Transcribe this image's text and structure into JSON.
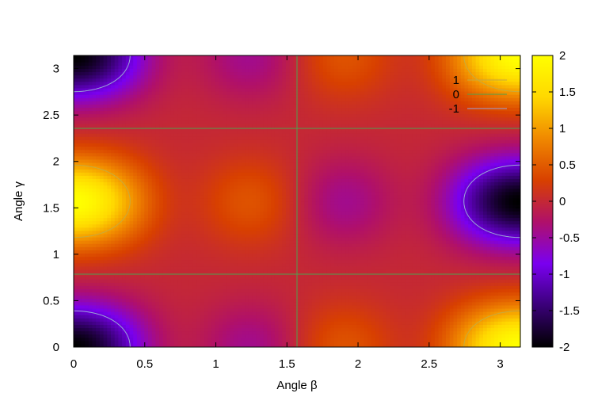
{
  "chart_data": {
    "type": "heatmap",
    "title": "",
    "xlabel": "Angle β",
    "ylabel": "Angle γ",
    "xlim": [
      0,
      3.1416
    ],
    "ylim": [
      0,
      3.1416
    ],
    "x_ticks": [
      "0",
      "0.5",
      "1",
      "1.5",
      "2",
      "2.5",
      "3"
    ],
    "y_ticks": [
      "0",
      "0.5",
      "1",
      "1.5",
      "2",
      "2.5",
      "3"
    ],
    "zlim": [
      -2,
      2
    ],
    "colorbar_ticks": [
      "2",
      "1.5",
      "1",
      "0.5",
      "0",
      "-0.5",
      "-1",
      "-1.5",
      "-2"
    ],
    "colorscale": [
      "#000000",
      "#3a0078",
      "#7a00f0",
      "#b0106a",
      "#d84000",
      "#f08800",
      "#ffd800",
      "#ffff00"
    ],
    "contour_levels": [
      1,
      0,
      -1
    ],
    "contour_colors": [
      "#c8aa3c",
      "#4ea04e",
      "#9aa5d5"
    ],
    "legend": {
      "position": "top-right",
      "entries": [
        "1",
        "0",
        "-1"
      ]
    },
    "grid": false
  }
}
